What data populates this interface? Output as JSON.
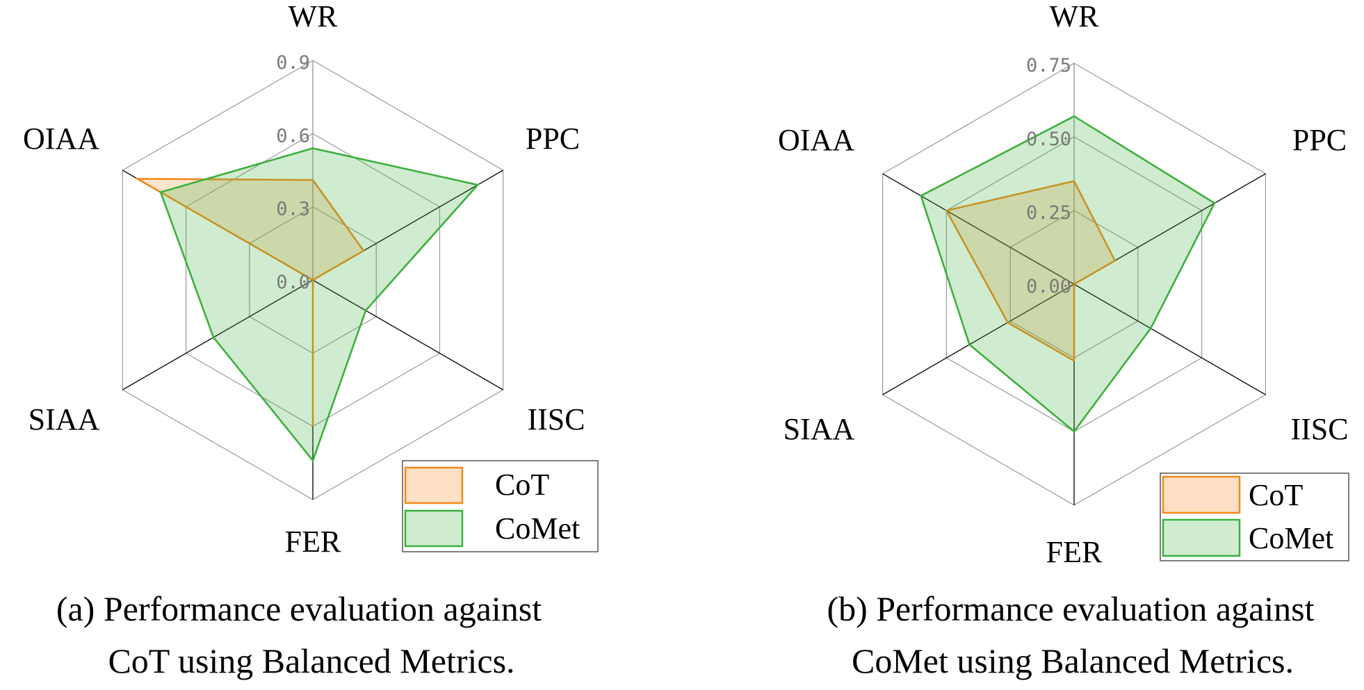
{
  "chart_data": [
    {
      "type": "radar",
      "axes": [
        "WR",
        "PPC",
        "IISC",
        "FER",
        "SIAA",
        "OIAA"
      ],
      "rticks": [
        "0.0",
        "0.3",
        "0.6",
        "0.9"
      ],
      "rlim": [
        0,
        0.9
      ],
      "series": [
        {
          "name": "CoT",
          "values": [
            0.41,
            0.24,
            0.0,
            0.6,
            0.0,
            0.83
          ],
          "color": "#f28a1c"
        },
        {
          "name": "CoMet",
          "values": [
            0.54,
            0.78,
            0.25,
            0.74,
            0.47,
            0.72
          ],
          "color": "#3cb03c"
        }
      ],
      "legend": "bottom-right",
      "caption_lines": [
        "(a) Performance evaluation against",
        "CoT using Balanced Metrics."
      ]
    },
    {
      "type": "radar",
      "axes": [
        "WR",
        "PPC",
        "IISC",
        "FER",
        "SIAA",
        "OIAA"
      ],
      "rticks": [
        "0.00",
        "0.25",
        "0.50",
        "0.75"
      ],
      "rlim": [
        0,
        0.75
      ],
      "series": [
        {
          "name": "CoT",
          "values": [
            0.35,
            0.16,
            0.0,
            0.26,
            0.26,
            0.5
          ],
          "color": "#f28a1c"
        },
        {
          "name": "CoMet",
          "values": [
            0.57,
            0.55,
            0.3,
            0.5,
            0.41,
            0.6
          ],
          "color": "#3cb03c"
        }
      ],
      "legend": "bottom-right",
      "caption_lines": [
        "(b) Performance evaluation against",
        "CoMet using Balanced Metrics."
      ]
    }
  ]
}
